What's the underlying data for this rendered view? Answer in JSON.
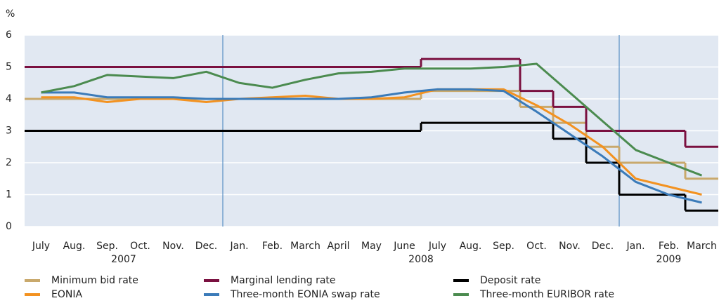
{
  "chart_data": {
    "type": "line",
    "y_label": "%",
    "x": [
      "2007-07",
      "2007-08",
      "2007-09",
      "2007-10",
      "2007-11",
      "2007-12",
      "2008-01",
      "2008-02",
      "2008-03",
      "2008-04",
      "2008-05",
      "2008-06",
      "2008-07",
      "2008-08",
      "2008-09",
      "2008-10",
      "2008-11",
      "2008-12",
      "2009-01",
      "2009-02",
      "2009-03"
    ],
    "xtick_labels": [
      "July",
      "Aug.",
      "Sep.",
      "Oct.",
      "Nov.",
      "Dec.",
      "Jan.",
      "Feb.",
      "March",
      "April",
      "May",
      "June",
      "July",
      "Aug.",
      "Sep.",
      "Oct.",
      "Nov.",
      "Dec.",
      "Jan.",
      "Feb.",
      "March"
    ],
    "year_labels": [
      "2007",
      "2008",
      "2009"
    ],
    "ylim": [
      0,
      6
    ],
    "yticks": [
      0,
      1,
      2,
      3,
      4,
      5,
      6
    ],
    "grid": true,
    "legend_position": "bottom",
    "series": [
      {
        "name": "Minimum bid rate",
        "color": "#c9a96c",
        "step": true,
        "values": [
          4.0,
          4.0,
          4.0,
          4.0,
          4.0,
          4.0,
          4.0,
          4.0,
          4.0,
          4.0,
          4.0,
          4.0,
          4.25,
          4.25,
          4.25,
          3.75,
          3.25,
          2.5,
          2.0,
          2.0,
          1.5
        ]
      },
      {
        "name": "Marginal lending rate",
        "color": "#7a1040",
        "step": true,
        "values": [
          5.0,
          5.0,
          5.0,
          5.0,
          5.0,
          5.0,
          5.0,
          5.0,
          5.0,
          5.0,
          5.0,
          5.0,
          5.25,
          5.25,
          5.25,
          4.25,
          3.75,
          3.0,
          3.0,
          3.0,
          2.5
        ]
      },
      {
        "name": "Deposit rate",
        "color": "#000000",
        "step": true,
        "values": [
          3.0,
          3.0,
          3.0,
          3.0,
          3.0,
          3.0,
          3.0,
          3.0,
          3.0,
          3.0,
          3.0,
          3.0,
          3.25,
          3.25,
          3.25,
          3.25,
          2.75,
          2.0,
          1.0,
          1.0,
          0.5
        ]
      },
      {
        "name": "EONIA",
        "color": "#f39220",
        "step": false,
        "values": [
          4.05,
          4.05,
          3.9,
          4.0,
          4.0,
          3.9,
          4.0,
          4.05,
          4.1,
          4.0,
          4.0,
          4.05,
          4.3,
          4.3,
          4.3,
          3.8,
          3.2,
          2.5,
          1.5,
          1.25,
          1.0
        ]
      },
      {
        "name": "Three-month EONIA swap rate",
        "color": "#3b7bb9",
        "step": false,
        "values": [
          4.2,
          4.2,
          4.05,
          4.05,
          4.05,
          4.0,
          4.0,
          4.0,
          4.0,
          4.0,
          4.05,
          4.2,
          4.3,
          4.3,
          4.25,
          3.6,
          2.9,
          2.2,
          1.4,
          1.0,
          0.75
        ]
      },
      {
        "name": "Three-month EURIBOR rate",
        "color": "#4b8b4f",
        "step": false,
        "values": [
          4.2,
          4.4,
          4.75,
          4.7,
          4.65,
          4.85,
          4.5,
          4.35,
          4.6,
          4.8,
          4.85,
          4.95,
          4.95,
          4.95,
          5.0,
          5.1,
          4.2,
          3.3,
          2.4,
          2.0,
          1.6
        ]
      }
    ]
  }
}
